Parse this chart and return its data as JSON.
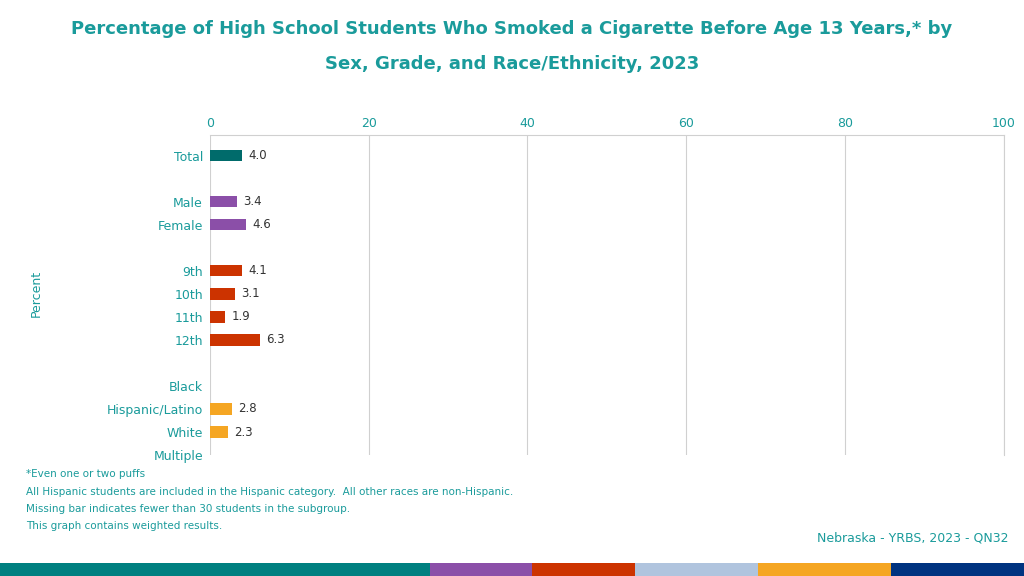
{
  "title_line1": "Percentage of High School Students Who Smoked a Cigarette Before Age 13 Years,* by",
  "title_line2": "Sex, Grade, and Race/Ethnicity, 2023",
  "title_color": "#1a9b9b",
  "ylabel": "Percent",
  "ylabel_color": "#1a9b9b",
  "xlim": [
    0,
    100
  ],
  "xticks": [
    0,
    20,
    40,
    60,
    80,
    100
  ],
  "categories": [
    "Total",
    "",
    "Male",
    "Female",
    "",
    "9th",
    "10th",
    "11th",
    "12th",
    "",
    "Black",
    "Hispanic/Latino",
    "White",
    "Multiple"
  ],
  "values": [
    4.0,
    null,
    3.4,
    4.6,
    null,
    4.1,
    3.1,
    1.9,
    6.3,
    null,
    null,
    2.8,
    2.3,
    null
  ],
  "bar_colors": [
    "#006b6b",
    null,
    "#8B4FA8",
    "#8B4FA8",
    null,
    "#CC3300",
    "#CC3300",
    "#CC3300",
    "#CC3300",
    null,
    null,
    "#F5A623",
    "#F5A623",
    null
  ],
  "label_color": "#1a9b9b",
  "value_label_color": "#333333",
  "footnote_lines": [
    "*Even one or two puffs",
    "All Hispanic students are included in the Hispanic category.  All other races are non-Hispanic.",
    "Missing bar indicates fewer than 30 students in the subgroup.",
    "This graph contains weighted results."
  ],
  "footnote_color": "#1a9b9b",
  "source_text": "Nebraska - YRBS, 2023 - QN32",
  "source_color": "#1a9b9b",
  "bottom_bar_colors": [
    "#008080",
    "#8B4FA8",
    "#CC3300",
    "#B0C4DE",
    "#F5A623",
    "#003380"
  ],
  "bottom_bar_widths": [
    0.42,
    0.1,
    0.1,
    0.12,
    0.13,
    0.13
  ],
  "background_color": "#ffffff",
  "grid_color": "#d0d0d0",
  "tick_label_color": "#1a9b9b"
}
